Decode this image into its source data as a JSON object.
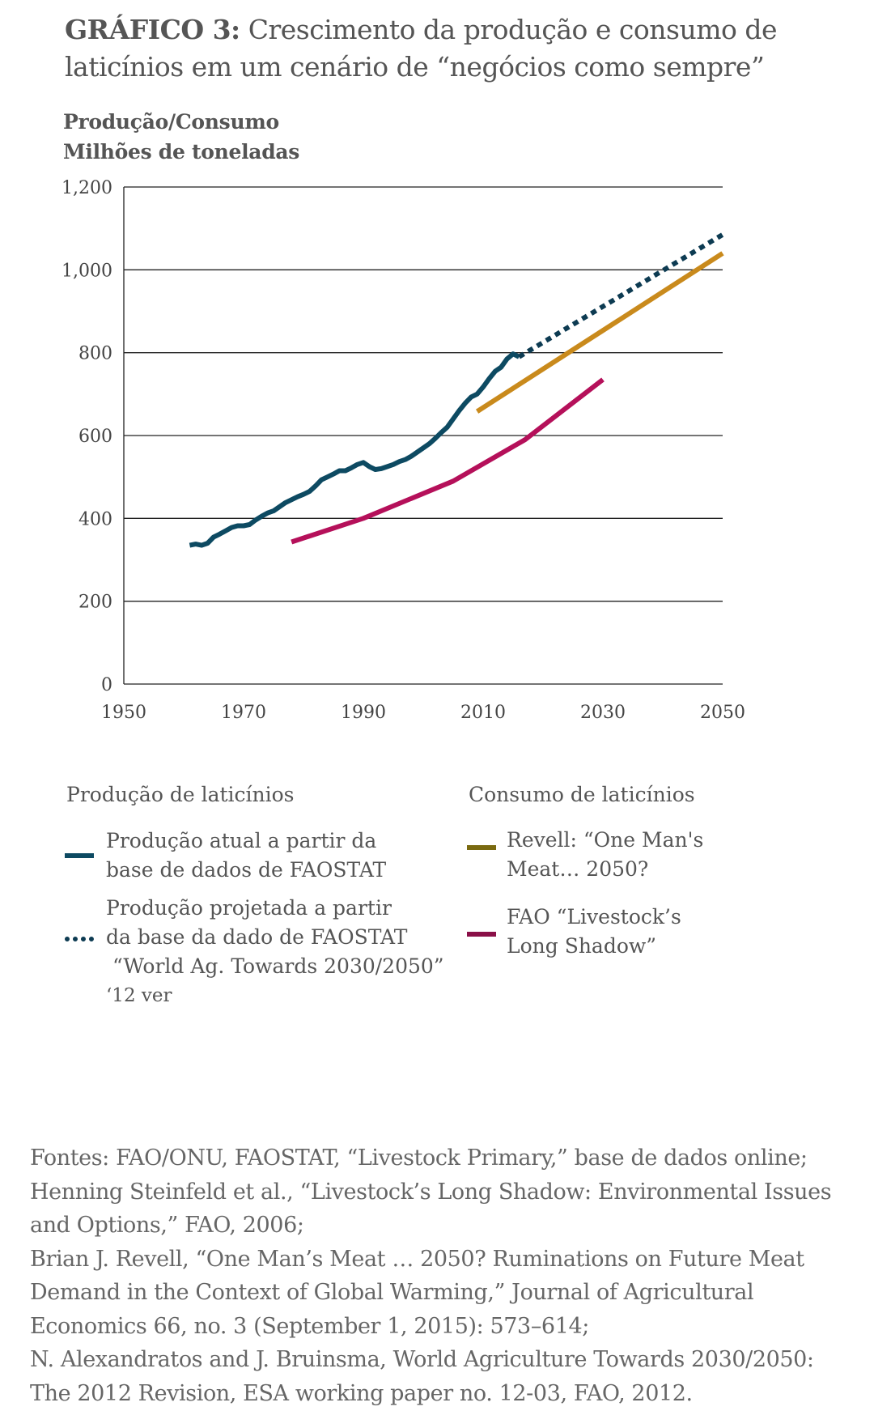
{
  "title": {
    "number": "GRÁFICO 3:",
    "text": "Crescimento da produção e consumo de laticínios em um cenário de “negócios como sempre”"
  },
  "ylabel": {
    "line1": "Produção/Consumo",
    "line2": "Milhões de toneladas"
  },
  "colors": {
    "production": "#0d4a62",
    "projection": "#0d3b52",
    "revell": "#c98a1c",
    "revell_legend": "#7a6a10",
    "fao": "#b5105a",
    "fao_legend": "#8a1048",
    "grid": "#222222"
  },
  "chart_data": {
    "type": "line",
    "xlim": [
      1950,
      2050
    ],
    "ylim": [
      0,
      1200
    ],
    "x_ticks": [
      "1950",
      "1970",
      "1990",
      "2010",
      "2030",
      "2050"
    ],
    "y_ticks": [
      "0",
      "200",
      "400",
      "600",
      "800",
      "1,000",
      "1,200"
    ],
    "grid": "horizontal",
    "series": [
      {
        "key": "production",
        "style": "solid",
        "points": [
          [
            1961,
            335
          ],
          [
            1962,
            338
          ],
          [
            1963,
            335
          ],
          [
            1964,
            340
          ],
          [
            1965,
            355
          ],
          [
            1966,
            362
          ],
          [
            1967,
            370
          ],
          [
            1968,
            378
          ],
          [
            1969,
            382
          ],
          [
            1970,
            382
          ],
          [
            1971,
            385
          ],
          [
            1972,
            396
          ],
          [
            1973,
            405
          ],
          [
            1974,
            413
          ],
          [
            1975,
            418
          ],
          [
            1976,
            428
          ],
          [
            1977,
            438
          ],
          [
            1978,
            445
          ],
          [
            1979,
            452
          ],
          [
            1980,
            458
          ],
          [
            1981,
            465
          ],
          [
            1982,
            478
          ],
          [
            1983,
            493
          ],
          [
            1984,
            500
          ],
          [
            1985,
            507
          ],
          [
            1986,
            515
          ],
          [
            1987,
            515
          ],
          [
            1988,
            522
          ],
          [
            1989,
            530
          ],
          [
            1990,
            535
          ],
          [
            1991,
            525
          ],
          [
            1992,
            518
          ],
          [
            1993,
            520
          ],
          [
            1994,
            525
          ],
          [
            1995,
            530
          ],
          [
            1996,
            537
          ],
          [
            1997,
            542
          ],
          [
            1998,
            550
          ],
          [
            1999,
            560
          ],
          [
            2000,
            570
          ],
          [
            2001,
            580
          ],
          [
            2002,
            593
          ],
          [
            2003,
            607
          ],
          [
            2004,
            620
          ],
          [
            2005,
            640
          ],
          [
            2006,
            660
          ],
          [
            2007,
            678
          ],
          [
            2008,
            693
          ],
          [
            2009,
            700
          ],
          [
            2010,
            717
          ],
          [
            2011,
            737
          ],
          [
            2012,
            755
          ],
          [
            2013,
            765
          ],
          [
            2014,
            785
          ],
          [
            2015,
            797
          ],
          [
            2016,
            790
          ]
        ]
      },
      {
        "key": "projection",
        "style": "dotted",
        "points": [
          [
            2016,
            790
          ],
          [
            2050,
            1085
          ]
        ]
      },
      {
        "key": "revell",
        "style": "solid",
        "points": [
          [
            2009,
            658
          ],
          [
            2050,
            1040
          ]
        ]
      },
      {
        "key": "fao",
        "style": "solid",
        "points": [
          [
            1978,
            343
          ],
          [
            1990,
            400
          ],
          [
            2005,
            490
          ],
          [
            2017,
            590
          ],
          [
            2030,
            735
          ]
        ]
      }
    ]
  },
  "legend": {
    "production_header": "Produção de laticínios",
    "consumption_header": "Consumo de laticínios",
    "actual_line1": "Produção atual a partir da",
    "actual_line2": "base de dados de FAOSTAT",
    "projected_line1": "Produção projetada a partir",
    "projected_line2": "da base da dado de FAOSTAT",
    "projected_line3": " “World Ag. Towards 2030/2050”",
    "projected_line4": "‘12 ver",
    "revell_line1": "Revell: “One Man's",
    "revell_line2": "Meat… 2050?",
    "fao_line1": "FAO “Livestock’s",
    "fao_line2": "Long Shadow”"
  },
  "sources": [
    "Fontes: FAO/ONU, FAOSTAT, “Livestock Primary,”  base de dados online;",
    "Henning Steinfeld et al., “Livestock’s Long Shadow: Environmental Issues",
    "and Options,” FAO, 2006;",
    "Brian J. Revell, “One Man’s Meat … 2050? Ruminations on Future Meat",
    "Demand in the Context of Global Warming,” Journal of Agricultural",
    "Economics 66, no. 3 (September 1, 2015): 573–614;",
    " N. Alexandratos and J. Bruinsma, World Agriculture Towards 2030/2050:",
    "The 2012 Revision, ESA working paper no. 12-03, FAO, 2012."
  ]
}
